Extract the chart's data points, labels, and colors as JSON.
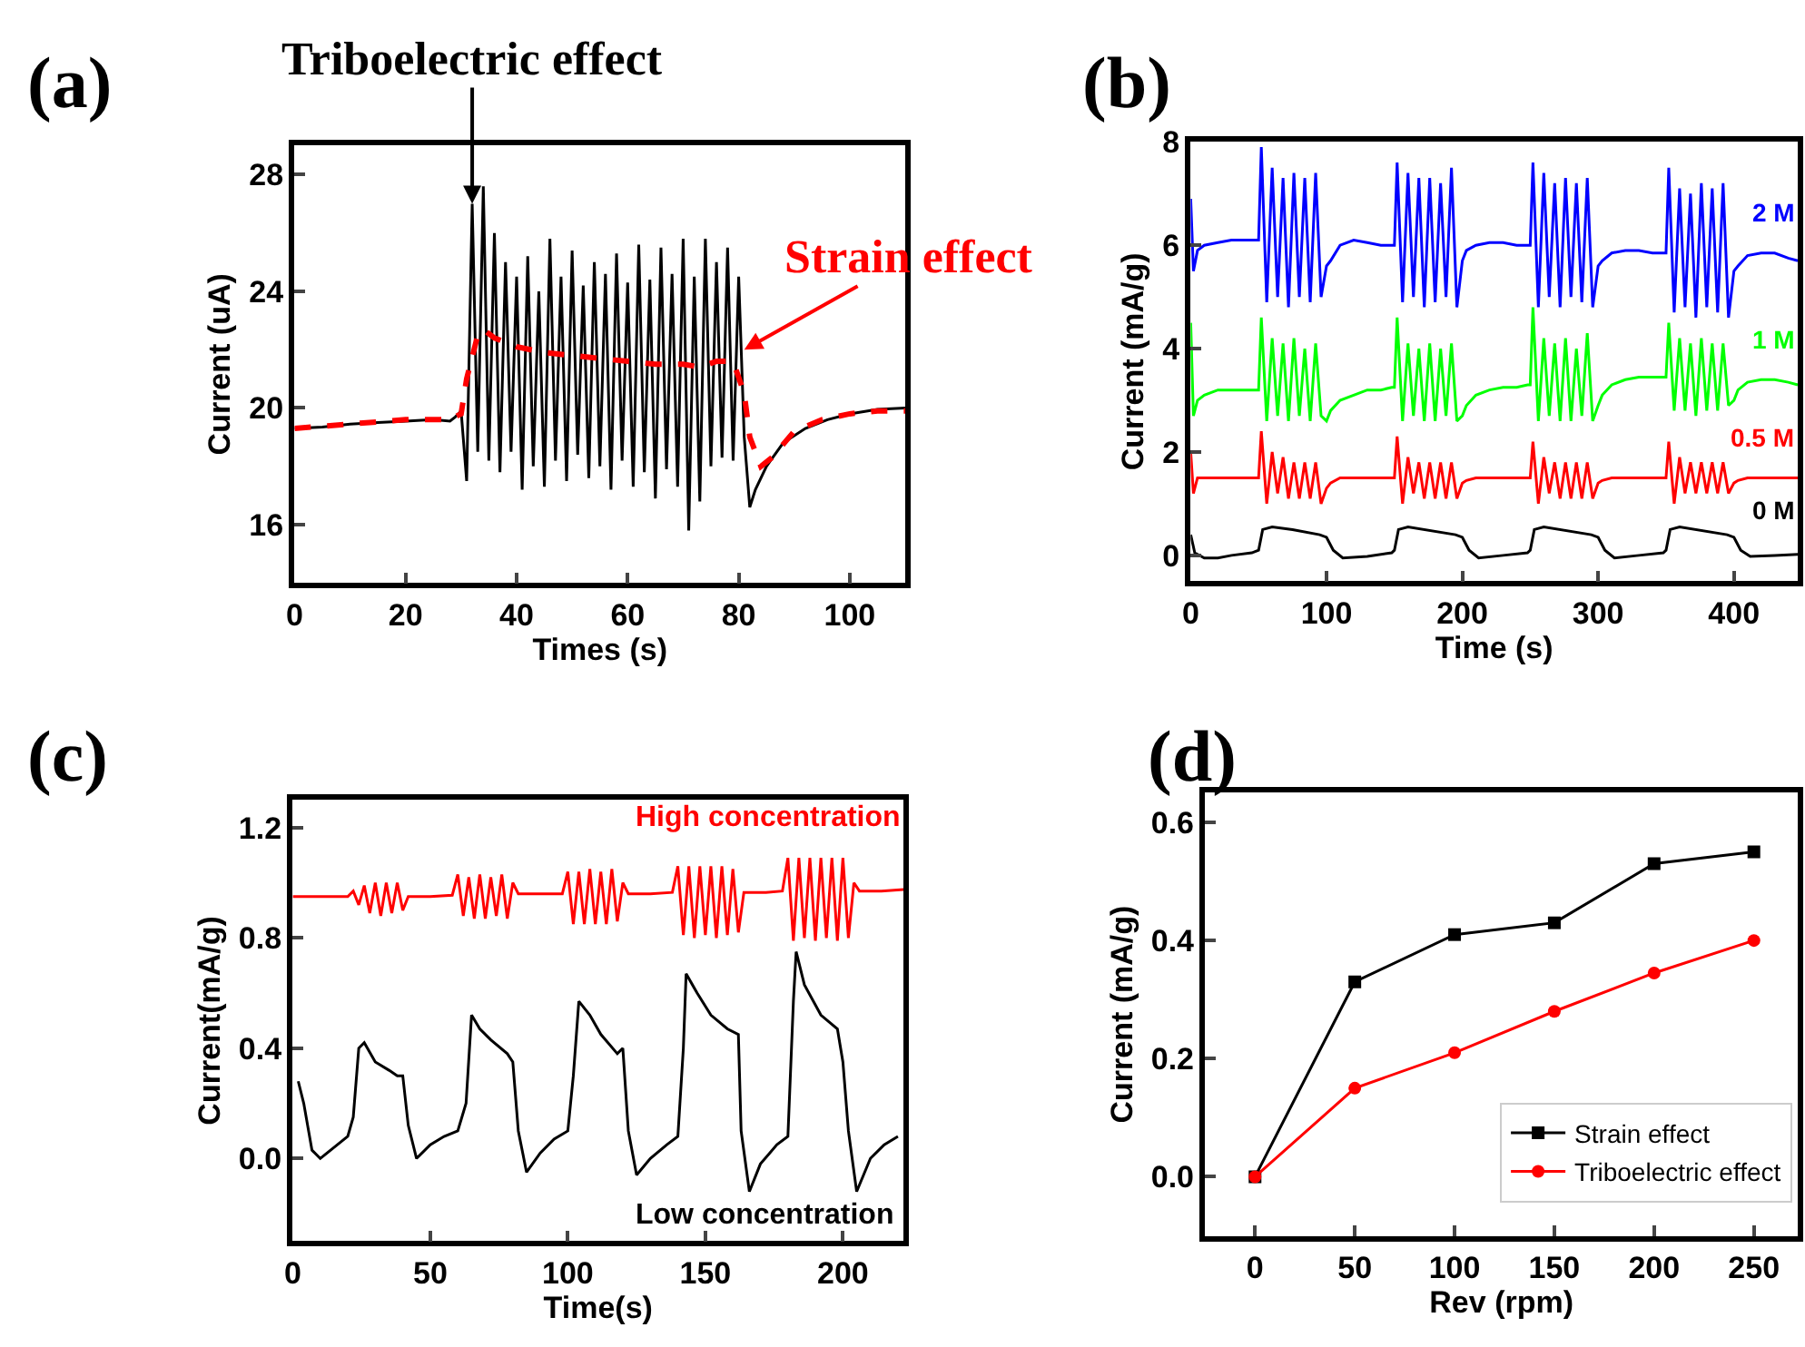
{
  "chart_data": [
    {
      "type": "line",
      "title": "(a)",
      "xlabel": "Times (s)",
      "ylabel": "Current (uA)",
      "xlim": [
        0,
        110
      ],
      "ylim": [
        14,
        29
      ],
      "xticks": [
        0,
        20,
        40,
        60,
        80,
        100
      ],
      "yticks": [
        16,
        20,
        24,
        28
      ],
      "series": [
        {
          "color": "#000000",
          "x": [
            0,
            5,
            10,
            15,
            20,
            25,
            28,
            29,
            30,
            31,
            32,
            33,
            34,
            35,
            36,
            37,
            38,
            39,
            40,
            41,
            42,
            43,
            44,
            45,
            46,
            47,
            48,
            49,
            50,
            51,
            52,
            53,
            54,
            55,
            56,
            57,
            58,
            59,
            60,
            61,
            62,
            63,
            64,
            65,
            66,
            67,
            68,
            69,
            70,
            71,
            72,
            73,
            74,
            75,
            76,
            77,
            78,
            79,
            80,
            81,
            82,
            83,
            85,
            88,
            92,
            96,
            100,
            105,
            110
          ],
          "values": [
            19.3,
            19.35,
            19.45,
            19.5,
            19.55,
            19.6,
            19.55,
            19.7,
            19.9,
            17.5,
            27.0,
            18.5,
            27.6,
            18.2,
            26.0,
            17.8,
            25.0,
            18.5,
            24.5,
            17.2,
            25.2,
            18.0,
            24.0,
            17.3,
            25.8,
            18.2,
            24.5,
            17.5,
            25.4,
            18.4,
            24.2,
            17.6,
            25.0,
            18.0,
            24.6,
            17.2,
            25.3,
            18.2,
            24.3,
            17.3,
            25.6,
            17.8,
            24.4,
            16.9,
            25.5,
            17.9,
            24.6,
            17.3,
            25.8,
            15.8,
            24.5,
            16.8,
            25.8,
            18.0,
            25.0,
            18.3,
            25.5,
            18.2,
            24.5,
            19.0,
            16.6,
            17.2,
            18.0,
            18.8,
            19.3,
            19.6,
            19.8,
            19.95,
            20.0
          ]
        },
        {
          "color": "#ff0000",
          "line_style": "dashed",
          "x": [
            0,
            10,
            20,
            28,
            30,
            31,
            33,
            34,
            36,
            40,
            45,
            50,
            55,
            60,
            65,
            70,
            73,
            76,
            79,
            81,
            82,
            84,
            86,
            90,
            95,
            100,
            105,
            110
          ],
          "values": [
            19.3,
            19.45,
            19.6,
            19.6,
            19.8,
            21.0,
            22.5,
            22.7,
            22.4,
            22.1,
            21.9,
            21.8,
            21.7,
            21.6,
            21.5,
            21.5,
            21.4,
            21.6,
            21.6,
            20.5,
            19.0,
            18.0,
            18.3,
            19.2,
            19.6,
            19.8,
            19.9,
            19.9
          ]
        }
      ],
      "annotations": [
        {
          "text": "Triboelectric effect",
          "x": 32,
          "y": 27
        },
        {
          "text": "Strain effect",
          "x": 81,
          "y": 22
        }
      ]
    },
    {
      "type": "line",
      "title": "(b)",
      "xlabel": "Time (s)",
      "ylabel": "Current (mA/g)",
      "xlim": [
        0,
        447
      ],
      "ylim": [
        -0.5,
        8
      ],
      "xticks": [
        0,
        100,
        200,
        300,
        400
      ],
      "yticks": [
        0,
        2,
        4,
        6,
        8
      ],
      "series": [
        {
          "name": "2 M",
          "color": "#0000ff",
          "x": [
            0,
            2,
            5,
            10,
            20,
            30,
            40,
            48,
            50,
            52,
            56,
            60,
            64,
            68,
            72,
            76,
            80,
            84,
            88,
            92,
            96,
            100,
            103,
            110,
            120,
            130,
            140,
            148,
            150,
            152,
            156,
            160,
            164,
            168,
            172,
            176,
            180,
            184,
            188,
            192,
            196,
            200,
            203,
            210,
            220,
            230,
            240,
            248,
            250,
            252,
            256,
            260,
            264,
            268,
            272,
            276,
            280,
            284,
            288,
            292,
            296,
            300,
            303,
            310,
            320,
            330,
            340,
            348,
            350,
            352,
            356,
            360,
            364,
            368,
            372,
            376,
            380,
            384,
            388,
            392,
            396,
            400,
            403,
            410,
            420,
            430,
            440,
            447
          ],
          "values": [
            6.9,
            5.5,
            5.9,
            6.0,
            6.05,
            6.1,
            6.1,
            6.1,
            6.1,
            7.9,
            4.9,
            7.5,
            5.0,
            7.3,
            4.8,
            7.4,
            5.0,
            7.3,
            4.9,
            7.4,
            5.0,
            5.6,
            5.7,
            6.0,
            6.1,
            6.05,
            6.0,
            6.0,
            6.0,
            7.6,
            4.9,
            7.4,
            5.0,
            7.3,
            4.8,
            7.3,
            4.9,
            7.2,
            5.0,
            7.5,
            4.8,
            5.7,
            5.9,
            6.0,
            6.05,
            6.05,
            6.0,
            6.0,
            6.0,
            7.6,
            4.8,
            7.4,
            5.0,
            7.2,
            4.8,
            7.3,
            5.0,
            7.2,
            4.9,
            7.3,
            4.8,
            5.6,
            5.7,
            5.85,
            5.9,
            5.9,
            5.85,
            5.85,
            5.85,
            7.5,
            4.7,
            7.1,
            4.8,
            7.0,
            4.6,
            7.2,
            4.8,
            7.1,
            4.7,
            7.2,
            4.6,
            5.5,
            5.6,
            5.8,
            5.85,
            5.85,
            5.75,
            5.7
          ]
        },
        {
          "name": "1 M",
          "color": "#00ff00",
          "x": [
            0,
            2,
            5,
            10,
            20,
            30,
            40,
            48,
            50,
            52,
            56,
            60,
            64,
            68,
            72,
            76,
            80,
            84,
            88,
            92,
            96,
            100,
            103,
            110,
            120,
            130,
            140,
            148,
            150,
            152,
            156,
            160,
            164,
            168,
            172,
            176,
            180,
            184,
            188,
            192,
            196,
            200,
            203,
            210,
            220,
            230,
            240,
            248,
            250,
            252,
            256,
            260,
            264,
            268,
            272,
            276,
            280,
            284,
            288,
            292,
            296,
            300,
            303,
            310,
            320,
            330,
            340,
            348,
            350,
            352,
            356,
            360,
            364,
            368,
            372,
            376,
            380,
            384,
            388,
            392,
            396,
            400,
            403,
            410,
            420,
            430,
            440,
            447
          ],
          "values": [
            4.5,
            2.7,
            3.0,
            3.1,
            3.2,
            3.2,
            3.2,
            3.2,
            3.2,
            4.6,
            2.6,
            4.2,
            2.7,
            4.1,
            2.6,
            4.2,
            2.7,
            4.0,
            2.6,
            4.1,
            2.7,
            2.6,
            2.8,
            3.0,
            3.1,
            3.2,
            3.2,
            3.25,
            3.25,
            4.6,
            2.6,
            4.1,
            2.7,
            4.0,
            2.6,
            4.1,
            2.6,
            4.0,
            2.7,
            4.1,
            2.6,
            2.7,
            2.9,
            3.1,
            3.2,
            3.25,
            3.25,
            3.3,
            3.3,
            4.8,
            2.6,
            4.2,
            2.7,
            4.1,
            2.6,
            4.2,
            2.6,
            4.0,
            2.7,
            4.3,
            2.6,
            2.9,
            3.1,
            3.3,
            3.4,
            3.45,
            3.45,
            3.45,
            3.45,
            4.5,
            2.8,
            4.2,
            2.8,
            4.1,
            2.7,
            4.2,
            2.8,
            4.1,
            2.8,
            4.1,
            2.9,
            3.0,
            3.2,
            3.35,
            3.4,
            3.4,
            3.35,
            3.3
          ]
        },
        {
          "name": "0.5 M",
          "color": "#ff0000",
          "x": [
            0,
            2,
            5,
            10,
            20,
            30,
            40,
            48,
            50,
            52,
            56,
            60,
            64,
            68,
            72,
            76,
            80,
            84,
            88,
            92,
            96,
            100,
            103,
            110,
            120,
            130,
            140,
            148,
            150,
            152,
            156,
            160,
            164,
            168,
            172,
            176,
            180,
            184,
            188,
            192,
            196,
            200,
            203,
            210,
            220,
            230,
            240,
            248,
            250,
            252,
            256,
            260,
            264,
            268,
            272,
            276,
            280,
            284,
            288,
            292,
            296,
            300,
            303,
            310,
            320,
            330,
            340,
            348,
            350,
            352,
            356,
            360,
            364,
            368,
            372,
            376,
            380,
            384,
            388,
            392,
            396,
            400,
            403,
            410,
            420,
            430,
            440,
            447
          ],
          "values": [
            2.0,
            1.2,
            1.5,
            1.5,
            1.5,
            1.5,
            1.5,
            1.5,
            1.5,
            2.4,
            1.0,
            2.0,
            1.2,
            1.9,
            1.1,
            1.8,
            1.1,
            1.8,
            1.1,
            1.8,
            1.0,
            1.3,
            1.4,
            1.5,
            1.5,
            1.5,
            1.5,
            1.5,
            1.5,
            2.3,
            1.0,
            1.9,
            1.2,
            1.8,
            1.1,
            1.8,
            1.1,
            1.8,
            1.1,
            1.8,
            1.1,
            1.4,
            1.45,
            1.5,
            1.5,
            1.5,
            1.5,
            1.5,
            1.5,
            2.2,
            1.0,
            1.9,
            1.2,
            1.8,
            1.1,
            1.8,
            1.1,
            1.8,
            1.1,
            1.8,
            1.1,
            1.4,
            1.45,
            1.5,
            1.5,
            1.5,
            1.5,
            1.5,
            1.5,
            2.2,
            1.0,
            1.9,
            1.2,
            1.8,
            1.2,
            1.8,
            1.2,
            1.8,
            1.2,
            1.8,
            1.2,
            1.4,
            1.45,
            1.5,
            1.5,
            1.5,
            1.5,
            1.5
          ]
        },
        {
          "name": "0 M",
          "color": "#000000",
          "x": [
            0,
            3,
            10,
            20,
            30,
            45,
            50,
            53,
            60,
            75,
            95,
            100,
            105,
            112,
            130,
            148,
            150,
            153,
            160,
            195,
            200,
            205,
            212,
            230,
            248,
            250,
            253,
            260,
            295,
            300,
            305,
            312,
            330,
            348,
            350,
            353,
            360,
            395,
            400,
            405,
            412,
            430,
            447
          ],
          "values": [
            0.4,
            0.05,
            -0.05,
            -0.05,
            0.0,
            0.05,
            0.1,
            0.5,
            0.55,
            0.5,
            0.4,
            0.35,
            0.1,
            -0.05,
            -0.02,
            0.05,
            0.1,
            0.5,
            0.55,
            0.4,
            0.35,
            0.1,
            -0.05,
            0.0,
            0.05,
            0.1,
            0.5,
            0.55,
            0.4,
            0.35,
            0.1,
            -0.05,
            0.0,
            0.05,
            0.1,
            0.5,
            0.55,
            0.4,
            0.35,
            0.1,
            -0.02,
            0.0,
            0.02
          ]
        }
      ]
    },
    {
      "type": "line",
      "title": "(c)",
      "xlabel": "Time(s)",
      "ylabel": "Current(mA/g)",
      "xlim": [
        0,
        222
      ],
      "ylim": [
        -0.3,
        1.3
      ],
      "xticks": [
        0,
        50,
        100,
        150,
        200
      ],
      "yticks": [
        {
          "value": 0,
          "label": "0.0"
        },
        0.4,
        0.8,
        1.2
      ],
      "series": [
        {
          "name": "High concentration",
          "color": "#ff0000",
          "x": [
            0,
            10,
            20,
            22,
            24,
            26,
            28,
            30,
            32,
            34,
            36,
            38,
            40,
            42,
            50,
            58,
            60,
            62,
            64,
            66,
            68,
            70,
            72,
            74,
            76,
            78,
            80,
            82,
            90,
            98,
            100,
            102,
            104,
            106,
            108,
            110,
            112,
            114,
            116,
            118,
            120,
            122,
            130,
            138,
            140,
            142,
            144,
            146,
            148,
            150,
            152,
            154,
            156,
            158,
            160,
            162,
            164,
            172,
            178,
            180,
            182,
            184,
            186,
            188,
            190,
            192,
            194,
            196,
            198,
            200,
            202,
            204,
            206,
            214,
            222
          ],
          "values": [
            0.95,
            0.95,
            0.95,
            0.97,
            0.92,
            0.99,
            0.89,
            1.0,
            0.88,
            1.0,
            0.89,
            1.0,
            0.9,
            0.95,
            0.95,
            0.955,
            1.03,
            0.88,
            1.02,
            0.87,
            1.03,
            0.87,
            1.02,
            0.88,
            1.03,
            0.87,
            1.0,
            0.96,
            0.96,
            0.96,
            1.04,
            0.85,
            1.04,
            0.85,
            1.05,
            0.85,
            1.04,
            0.85,
            1.05,
            0.86,
            1.0,
            0.96,
            0.96,
            0.965,
            1.06,
            0.81,
            1.06,
            0.8,
            1.06,
            0.81,
            1.06,
            0.8,
            1.06,
            0.81,
            1.05,
            0.82,
            0.965,
            0.965,
            0.97,
            1.09,
            0.79,
            1.09,
            0.8,
            1.09,
            0.79,
            1.09,
            0.8,
            1.09,
            0.79,
            1.09,
            0.8,
            1.0,
            0.97,
            0.97,
            0.975
          ]
        },
        {
          "name": "Low concentration",
          "color": "#000000",
          "x": [
            2,
            4,
            7,
            10,
            15,
            20,
            22,
            24,
            26,
            30,
            35,
            38,
            40,
            42,
            45,
            50,
            55,
            60,
            63,
            65,
            68,
            72,
            78,
            80,
            82,
            85,
            90,
            95,
            100,
            102,
            104,
            108,
            112,
            118,
            120,
            122,
            125,
            130,
            136,
            140,
            142,
            143,
            147,
            152,
            158,
            162,
            163,
            166,
            170,
            176,
            180,
            182,
            183,
            186,
            192,
            198,
            200,
            202,
            205,
            210,
            215,
            220
          ],
          "values": [
            0.28,
            0.2,
            0.03,
            0.0,
            0.04,
            0.08,
            0.15,
            0.4,
            0.42,
            0.35,
            0.32,
            0.3,
            0.3,
            0.12,
            0.0,
            0.05,
            0.08,
            0.1,
            0.2,
            0.52,
            0.47,
            0.43,
            0.38,
            0.35,
            0.1,
            -0.05,
            0.02,
            0.07,
            0.1,
            0.3,
            0.57,
            0.52,
            0.45,
            0.38,
            0.4,
            0.1,
            -0.06,
            0.0,
            0.05,
            0.08,
            0.4,
            0.67,
            0.6,
            0.52,
            0.47,
            0.45,
            0.1,
            -0.12,
            -0.02,
            0.05,
            0.08,
            0.57,
            0.75,
            0.63,
            0.52,
            0.47,
            0.35,
            0.1,
            -0.12,
            0.0,
            0.05,
            0.08
          ]
        }
      ]
    },
    {
      "type": "line",
      "title": "(d)",
      "xlabel": "Rev (rpm)",
      "ylabel": "Current (mA/g)",
      "xlim": [
        -25,
        272
      ],
      "ylim": [
        -0.1,
        0.65
      ],
      "xticks": [
        0,
        50,
        100,
        150,
        200,
        250
      ],
      "yticks": [
        {
          "value": 0,
          "label": "0.0"
        },
        0.2,
        0.4,
        0.6
      ],
      "legend": "bottom right",
      "series": [
        {
          "name": "Strain effect",
          "color": "#000000",
          "marker": "square",
          "x": [
            0,
            50,
            100,
            150,
            200,
            250
          ],
          "values": [
            0,
            0.33,
            0.41,
            0.43,
            0.53,
            0.55
          ]
        },
        {
          "name": "Triboelectric effect",
          "color": "#ff0000",
          "marker": "circle",
          "x": [
            0,
            50,
            100,
            150,
            200,
            250
          ],
          "values": [
            0,
            0.15,
            0.21,
            0.28,
            0.345,
            0.4
          ]
        }
      ]
    }
  ]
}
